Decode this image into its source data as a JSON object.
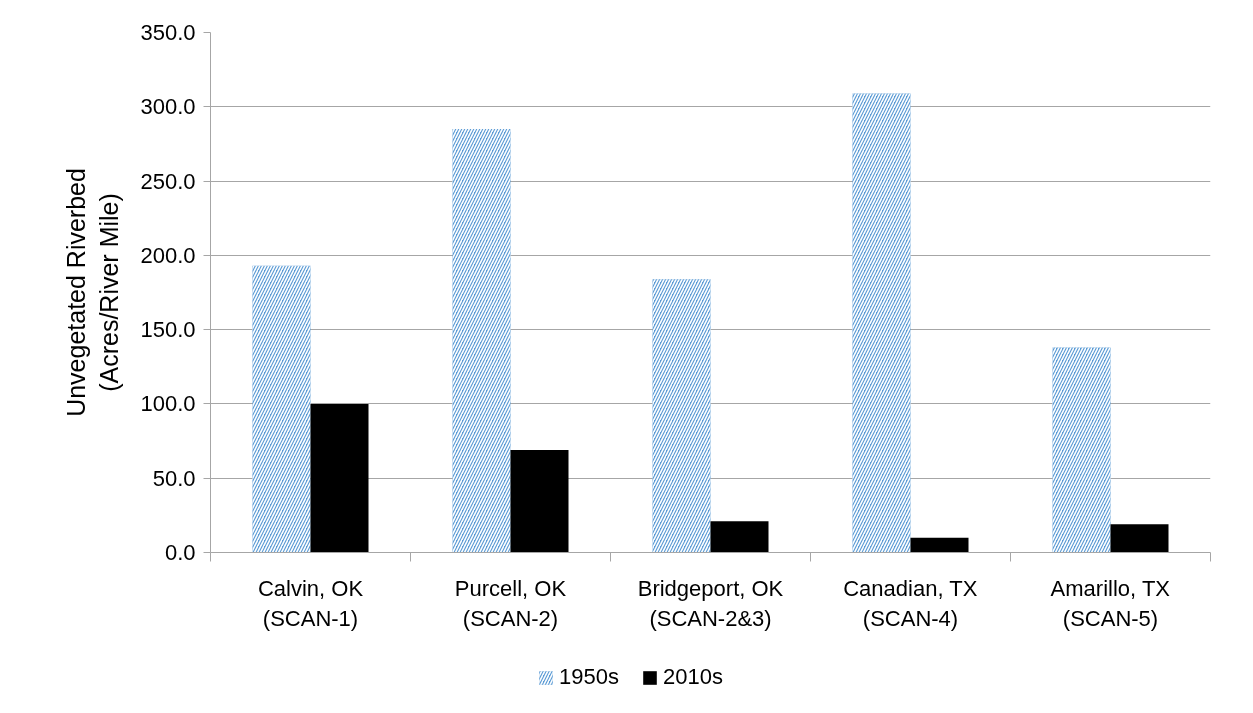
{
  "chart_data": {
    "type": "bar",
    "ylabel": "Unvegetated Riverbed\n(Acres/River Mile)",
    "categories": [
      "Calvin, OK\n(SCAN-1)",
      "Purcell, OK\n(SCAN-2)",
      "Bridgeport, OK\n(SCAN-2&3)",
      "Canadian, TX\n(SCAN-4)",
      "Amarillo, TX\n(SCAN-5)"
    ],
    "series": [
      {
        "name": "1950s",
        "color": "#5b9bd5",
        "values": [
          193,
          285,
          184,
          309,
          138
        ]
      },
      {
        "name": "2010s",
        "color": "#000000",
        "values": [
          100,
          69,
          21,
          10,
          19
        ]
      }
    ],
    "ylim": [
      0,
      350
    ],
    "yticks": [
      {
        "value": 0,
        "label": "0.0"
      },
      {
        "value": 50,
        "label": "50.0"
      },
      {
        "value": 100,
        "label": "100.0"
      },
      {
        "value": 150,
        "label": "150.0"
      },
      {
        "value": 200,
        "label": "200.0"
      },
      {
        "value": 250,
        "label": "250.0"
      },
      {
        "value": 300,
        "label": "300.0"
      },
      {
        "value": 350,
        "label": "350.0"
      }
    ],
    "grid": "y",
    "legend": "bottom"
  }
}
